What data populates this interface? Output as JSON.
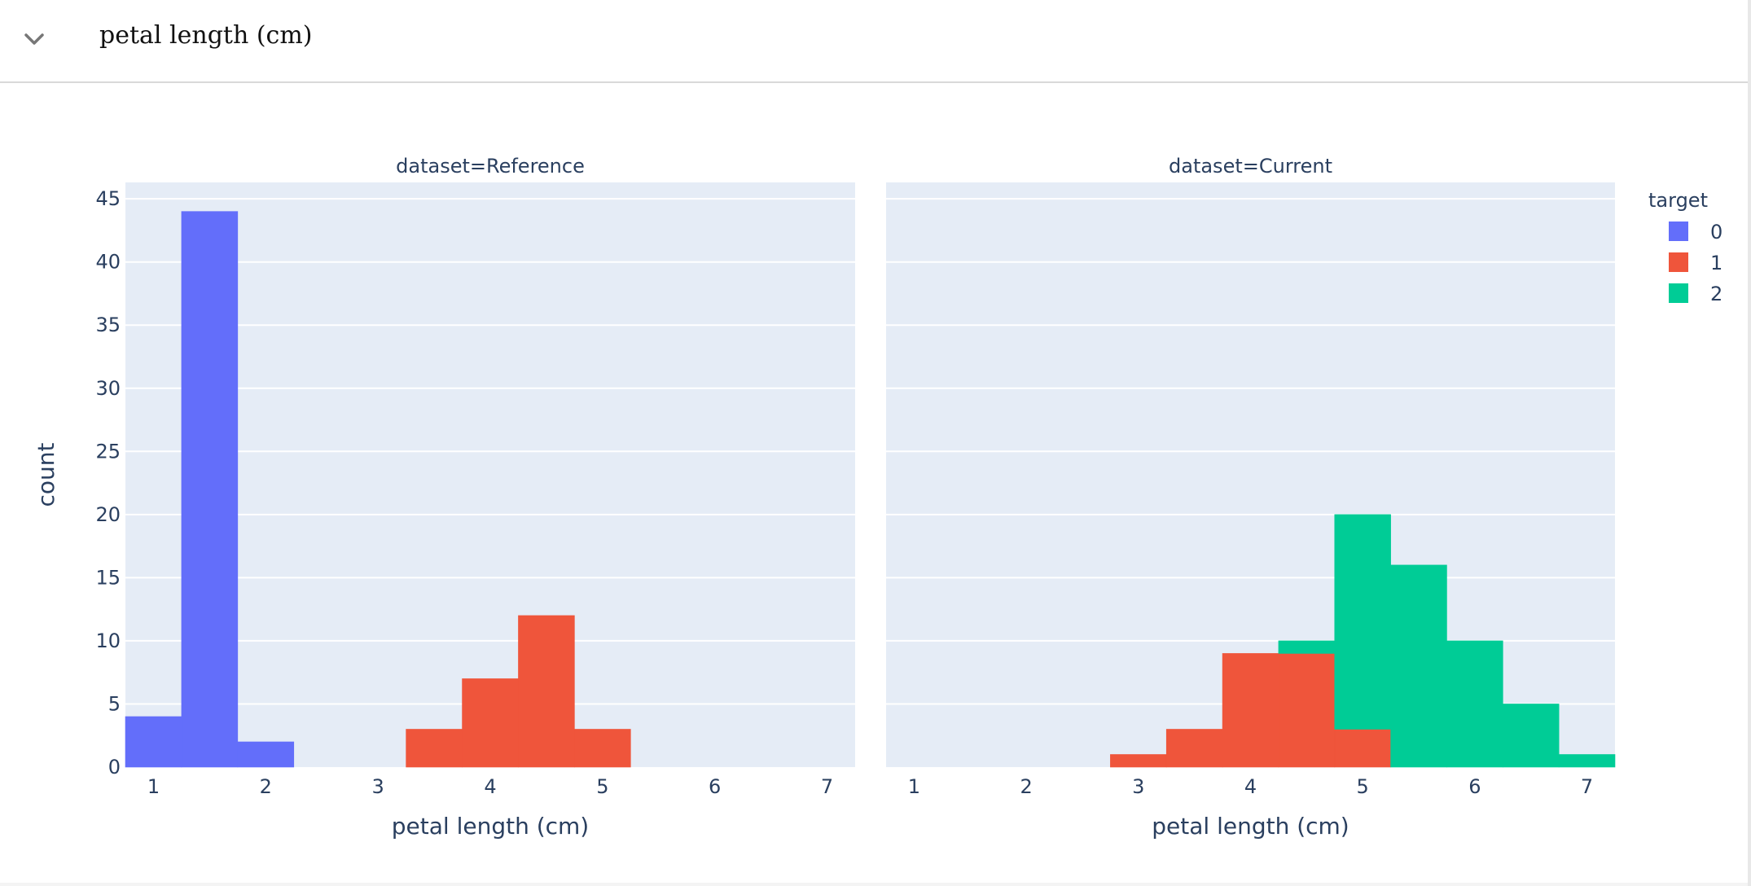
{
  "header": {
    "title": "petal length (cm)",
    "toggle_icon": "chevron-down-icon"
  },
  "chart_data": {
    "type": "bar",
    "title": "",
    "xlabel": "petal length (cm)",
    "ylabel": "count",
    "ylim": [
      0,
      46.3
    ],
    "xlim": [
      0.75,
      7.25
    ],
    "yticks": [
      0,
      5,
      10,
      15,
      20,
      25,
      30,
      35,
      40,
      45
    ],
    "xticks": [
      1,
      2,
      3,
      4,
      5,
      6,
      7
    ],
    "bin_width": 0.5,
    "barmode": "stack",
    "grid": true,
    "legend": {
      "title": "target",
      "position": "right",
      "items": [
        {
          "name": "0",
          "color": "#636efa"
        },
        {
          "name": "1",
          "color": "#ef553b"
        },
        {
          "name": "2",
          "color": "#00cc96"
        }
      ]
    },
    "facets": [
      {
        "label": "dataset=Reference",
        "series": [
          {
            "name": "0",
            "color": "#636efa",
            "bins": [
              [
                0.75,
                4
              ],
              [
                1.25,
                44
              ],
              [
                1.75,
                2
              ]
            ]
          },
          {
            "name": "1",
            "color": "#ef553b",
            "bins": [
              [
                3.25,
                3
              ],
              [
                3.75,
                7
              ],
              [
                4.25,
                12
              ],
              [
                4.75,
                3
              ]
            ]
          },
          {
            "name": "2",
            "color": "#00cc96",
            "bins": []
          }
        ]
      },
      {
        "label": "dataset=Current",
        "series": [
          {
            "name": "0",
            "color": "#636efa",
            "bins": []
          },
          {
            "name": "1",
            "color": "#ef553b",
            "bins": [
              [
                2.75,
                1
              ],
              [
                3.25,
                3
              ],
              [
                3.75,
                9
              ],
              [
                4.25,
                9
              ],
              [
                4.75,
                3
              ]
            ]
          },
          {
            "name": "2",
            "color": "#00cc96",
            "bins": [
              [
                4.25,
                1
              ],
              [
                4.75,
                17
              ],
              [
                5.25,
                16
              ],
              [
                5.75,
                10
              ],
              [
                6.25,
                5
              ],
              [
                6.75,
                1
              ]
            ]
          }
        ]
      }
    ]
  }
}
